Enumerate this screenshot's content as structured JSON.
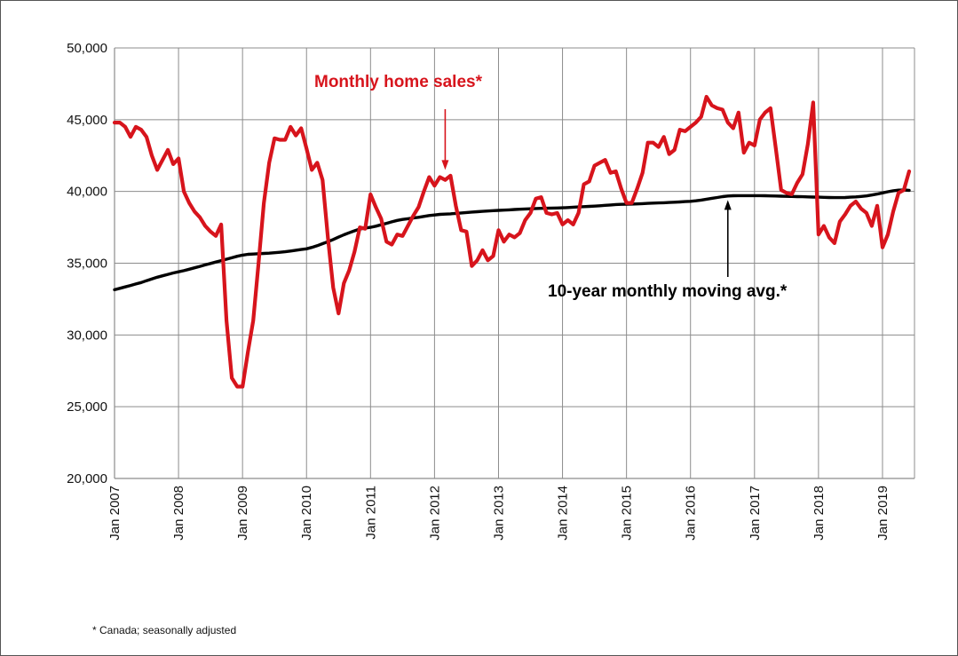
{
  "chart_data": {
    "type": "line",
    "title": "",
    "xlabel": "",
    "ylabel": "",
    "ylim": [
      20000,
      50000
    ],
    "y_ticks": [
      20000,
      25000,
      30000,
      35000,
      40000,
      45000,
      50000
    ],
    "y_tick_labels": [
      "20,000",
      "25,000",
      "30,000",
      "35,000",
      "40,000",
      "45,000",
      "50,000"
    ],
    "x_start": "Jan 2007",
    "x_end": "Jul 2019",
    "x_tick_labels": [
      "Jan 2007",
      "Jan 2008",
      "Jan 2009",
      "Jan 2010",
      "Jan 2011",
      "Jan 2012",
      "Jan 2013",
      "Jan 2014",
      "Jan 2015",
      "Jan 2016",
      "Jan 2017",
      "Jan 2018",
      "Jan 2019"
    ],
    "grid": true,
    "colors": {
      "sales": "#d7141c",
      "avg": "#000000"
    },
    "series": [
      {
        "name": "Monthly home sales*",
        "values": [
          44800,
          44800,
          44500,
          43800,
          44500,
          44300,
          43800,
          42500,
          41500,
          42200,
          42900,
          41900,
          42300,
          40000,
          39200,
          38600,
          38200,
          37600,
          37200,
          36900,
          37700,
          31000,
          27000,
          26400,
          26400,
          28800,
          31000,
          35000,
          39200,
          42000,
          43700,
          43600,
          43600,
          44500,
          43900,
          44400,
          43000,
          41500,
          42000,
          40800,
          36800,
          33300,
          31500,
          33600,
          34500,
          35800,
          37500,
          37400,
          39800,
          38900,
          38100,
          36500,
          36300,
          37000,
          36900,
          37600,
          38300,
          38900,
          40000,
          41000,
          40400,
          41000,
          40800,
          41100,
          39000,
          37300,
          37200,
          34800,
          35200,
          35900,
          35200,
          35500,
          37300,
          36500,
          37000,
          36800,
          37100,
          38000,
          38500,
          39500,
          39600,
          38500,
          38400,
          38500,
          37700,
          38000,
          37700,
          38500,
          40500,
          40700,
          41800,
          42000,
          42200,
          41300,
          41400,
          40200,
          39200,
          39200,
          40200,
          41300,
          43400,
          43400,
          43100,
          43800,
          42600,
          42900,
          44300,
          44200,
          44500,
          44800,
          45200,
          46600,
          46000,
          45800,
          45700,
          44800,
          44400,
          45500,
          42700,
          43400,
          43200,
          45000,
          45500,
          45800,
          43000,
          40100,
          39900,
          39800,
          40600,
          41200,
          43300,
          46200,
          37000,
          37600,
          36800,
          36400,
          37900,
          38400,
          39000,
          39300,
          38800,
          38500,
          37600,
          39000,
          36100,
          37000,
          38600,
          39900,
          40100,
          41400
        ]
      },
      {
        "name": "10-year monthly moving avg.*",
        "values": [
          33150,
          33250,
          33350,
          33450,
          33550,
          33650,
          33780,
          33900,
          34020,
          34120,
          34220,
          34320,
          34400,
          34480,
          34580,
          34680,
          34780,
          34880,
          34980,
          35080,
          35180,
          35280,
          35380,
          35480,
          35560,
          35620,
          35640,
          35660,
          35680,
          35700,
          35730,
          35760,
          35800,
          35850,
          35900,
          35950,
          36000,
          36100,
          36220,
          36360,
          36500,
          36650,
          36820,
          36980,
          37120,
          37260,
          37380,
          37450,
          37500,
          37580,
          37680,
          37780,
          37880,
          37980,
          38050,
          38100,
          38150,
          38200,
          38260,
          38320,
          38360,
          38400,
          38420,
          38440,
          38470,
          38500,
          38530,
          38560,
          38590,
          38610,
          38640,
          38660,
          38680,
          38700,
          38720,
          38740,
          38760,
          38780,
          38790,
          38810,
          38820,
          38830,
          38840,
          38850,
          38860,
          38880,
          38900,
          38920,
          38940,
          38960,
          38980,
          39000,
          39030,
          39060,
          39090,
          39100,
          39110,
          39120,
          39130,
          39150,
          39170,
          39190,
          39200,
          39210,
          39230,
          39250,
          39270,
          39290,
          39310,
          39350,
          39400,
          39460,
          39520,
          39580,
          39640,
          39680,
          39700,
          39710,
          39710,
          39710,
          39710,
          39710,
          39700,
          39690,
          39680,
          39670,
          39660,
          39650,
          39640,
          39630,
          39620,
          39610,
          39600,
          39590,
          39580,
          39570,
          39570,
          39580,
          39600,
          39620,
          39650,
          39690,
          39750,
          39820,
          39900,
          39980,
          40050,
          40090,
          40100,
          40080
        ]
      }
    ],
    "annotations": [
      {
        "text": "Monthly home sales*",
        "arrow_to": {
          "x": "Mar 2012",
          "y": 41500
        },
        "color": "#d7141c"
      },
      {
        "text": "10-year monthly moving avg.*",
        "arrow_to": {
          "x": "Aug 2016",
          "y": 39400
        },
        "color": "#000000"
      }
    ]
  },
  "footnote": "* Canada; seasonally adjusted"
}
